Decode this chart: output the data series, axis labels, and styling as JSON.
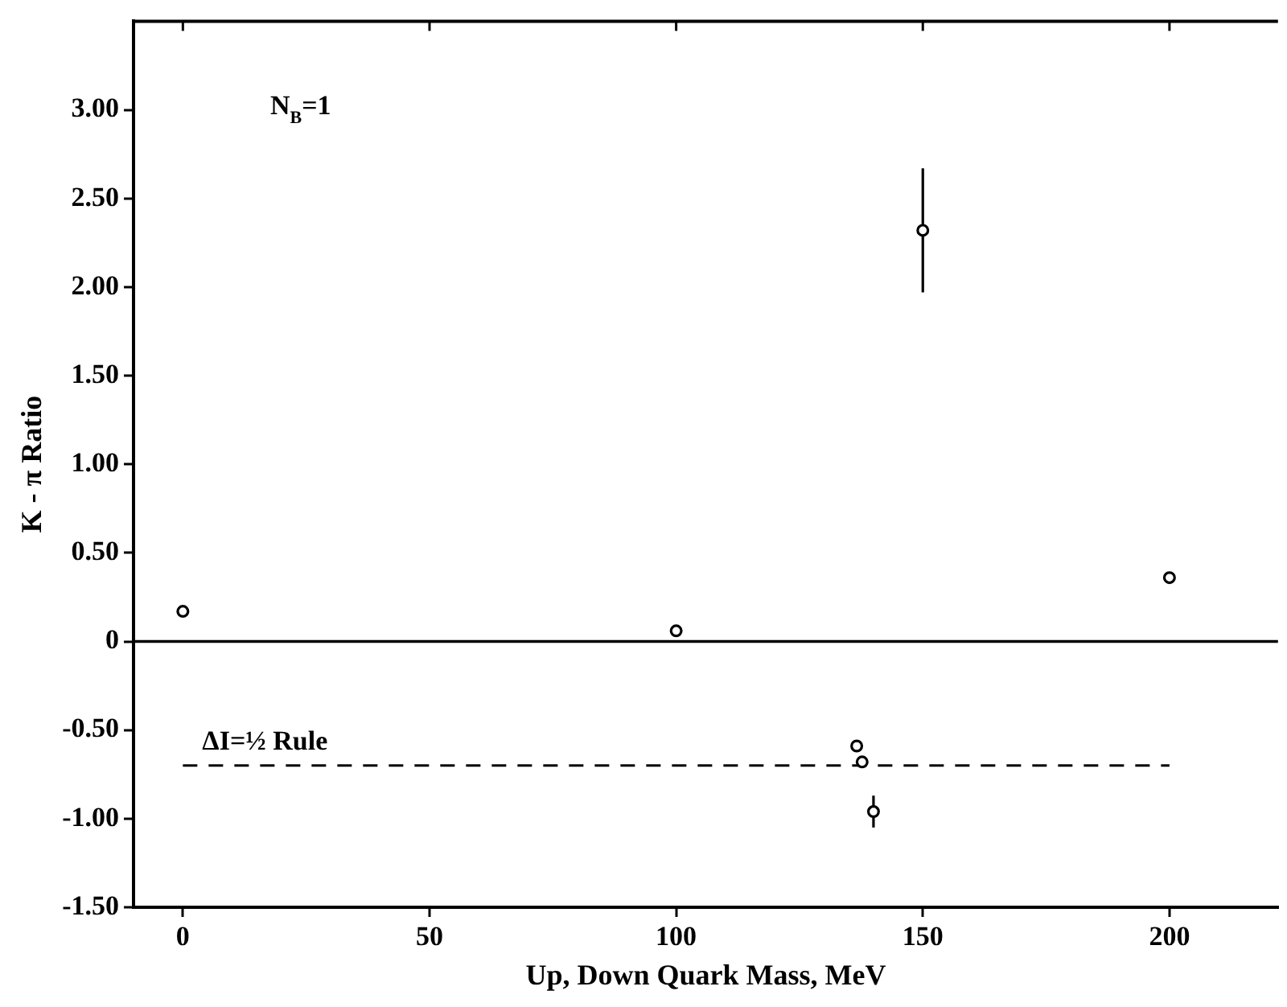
{
  "chart_data": {
    "type": "scatter",
    "xlabel": "Up, Down Quark Mass, MeV",
    "ylabel": "K - π Ratio",
    "xlim": [
      -10,
      222
    ],
    "xticks": [
      0,
      50,
      100,
      150,
      200
    ],
    "ylim": [
      -1.5,
      3.5
    ],
    "yticks": [
      {
        "value": -1.5,
        "label": "-1.50"
      },
      {
        "value": -1,
        "label": "-1.00"
      },
      {
        "value": -0.5,
        "label": "-0.50"
      },
      0,
      {
        "value": 0.5,
        "label": "0.50"
      },
      {
        "value": 1,
        "label": "1.00"
      },
      {
        "value": 1.5,
        "label": "1.50"
      },
      {
        "value": 2,
        "label": "2.00"
      },
      {
        "value": 2.5,
        "label": "2.50"
      },
      {
        "value": 3,
        "label": "3.00"
      }
    ],
    "grid": false,
    "legend": false,
    "marker": "circle",
    "series": [
      {
        "type": "scatter",
        "color": "#000000",
        "x": [
          0,
          100,
          136.6,
          137.7,
          140,
          150,
          200
        ],
        "values": [
          0.17,
          0.06,
          -0.59,
          -0.68,
          -0.96,
          2.32,
          0.36
        ],
        "errors": [
          null,
          null,
          null,
          null,
          0.09,
          0.35,
          null
        ]
      },
      {
        "type": "line",
        "name": "ΔI=½ Rule",
        "color": "#000000",
        "line_style": "dashed",
        "marker": "none",
        "x": [
          0,
          200
        ],
        "values": [
          -0.7,
          -0.7
        ]
      }
    ],
    "ref_lines": [
      {
        "axis": "y",
        "value": 0,
        "color": "#000000",
        "line_style": "solid"
      }
    ],
    "annotations": [
      "N$_{B}$=1"
    ]
  }
}
